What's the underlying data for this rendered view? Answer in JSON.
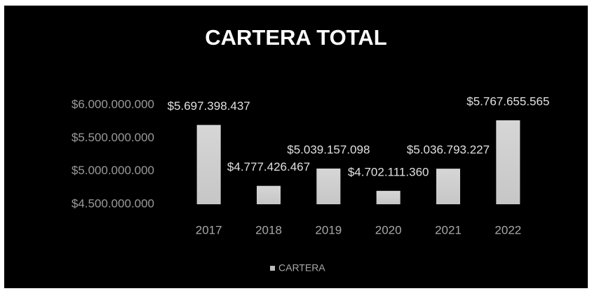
{
  "chart_data": {
    "type": "bar",
    "title": "CARTERA TOTAL",
    "categories": [
      "2017",
      "2018",
      "2019",
      "2020",
      "2021",
      "2022"
    ],
    "series": [
      {
        "name": "CARTERA",
        "color": "#bdbdbd",
        "values": [
          5697398437,
          4777426467,
          5039157098,
          4702111360,
          5036793227,
          5767655565
        ],
        "value_labels": [
          "$5.697.398.437",
          "$4.777.426.467",
          "$5.039.157.098",
          "$4.702.111.360",
          "$5.036.793.227",
          "$5.767.655.565"
        ]
      }
    ],
    "ylim": [
      4500000000,
      6000000000
    ],
    "yticks": [
      {
        "value": 4500000000,
        "label": "$4.500.000.000"
      },
      {
        "value": 5000000000,
        "label": "$5.000.000.000"
      },
      {
        "value": 5500000000,
        "label": "$5.500.000.000"
      },
      {
        "value": 6000000000,
        "label": "$6.000.000.000"
      }
    ],
    "grid": false,
    "legend": "bottom"
  }
}
